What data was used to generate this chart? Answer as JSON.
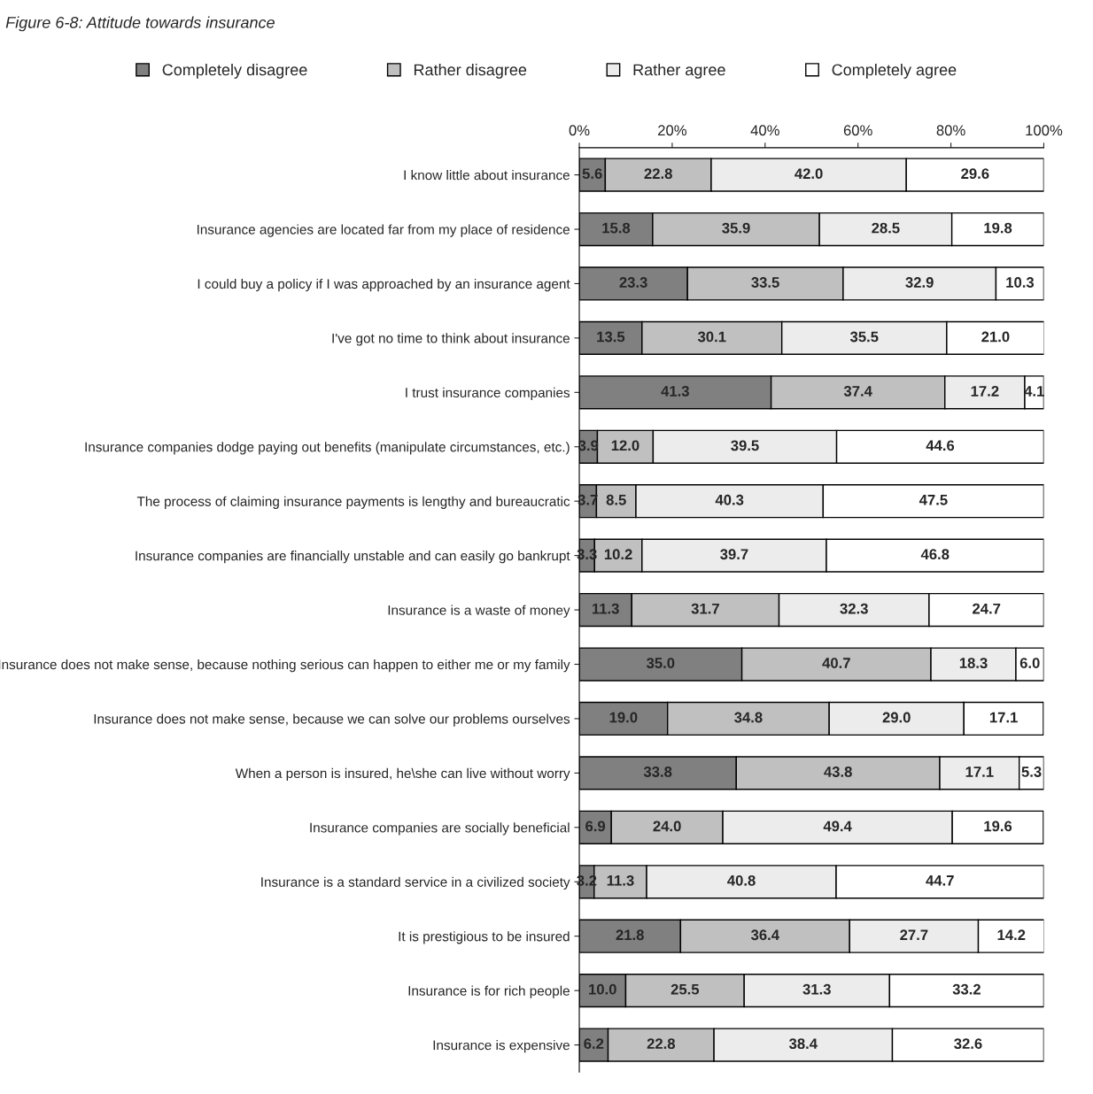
{
  "chart_data": {
    "type": "bar",
    "orientation": "horizontal",
    "stacked": true,
    "title": "Figure 6-8: Attitude towards insurance",
    "categories": [
      "I know little about insurance",
      "Insurance agencies are located far from my place of residence",
      "I could buy a policy if I was approached by an insurance agent",
      "I've got no time to think about insurance",
      "I trust insurance companies",
      "Insurance companies dodge paying out benefits (manipulate circumstances, etc.)",
      "The process of claiming insurance payments is lengthy and bureaucratic",
      "Insurance companies are financially unstable and can easily go bankrupt",
      "Insurance is a waste of money",
      "Insurance does not make sense, because nothing serious can happen to either me or my family",
      "Insurance does not make sense, because we can solve our problems ourselves",
      "When a person is insured, he\\she can live without worry",
      "Insurance companies are socially beneficial",
      "Insurance is a standard service in a civilized society",
      "It is prestigious to be insured",
      "Insurance is for rich people",
      "Insurance is expensive"
    ],
    "series": [
      {
        "name": "Completely disagree",
        "color": "#808080",
        "values": [
          5.6,
          15.8,
          23.3,
          13.5,
          41.3,
          3.9,
          3.7,
          3.3,
          11.3,
          35.0,
          19.0,
          33.8,
          6.9,
          3.2,
          21.8,
          10.0,
          6.2
        ],
        "value_labels": [
          "5.6",
          "15.8",
          "23.3",
          "13.5",
          "41.3",
          "3.9",
          "3.7",
          "3.3",
          "11.3",
          "35.0",
          "19.0",
          "33.8",
          "6.9",
          "3.2",
          "21.8",
          "10.0",
          "6.2"
        ]
      },
      {
        "name": "Rather disagree",
        "color": "#c0c0c0",
        "values": [
          22.8,
          35.9,
          33.5,
          30.1,
          37.4,
          12.0,
          8.5,
          10.2,
          31.7,
          40.7,
          34.8,
          43.8,
          24.0,
          11.3,
          36.4,
          25.5,
          22.8
        ],
        "value_labels": [
          "22.8",
          "35.9",
          "33.5",
          "30.1",
          "37.4",
          "12.0",
          "8.5",
          "10.2",
          "31.7",
          "40.7",
          "34.8",
          "43.8",
          "24.0",
          "11.3",
          "36.4",
          "25.5",
          "22.8"
        ]
      },
      {
        "name": "Rather agree",
        "color": "#ececec",
        "values": [
          42.0,
          28.5,
          32.9,
          35.5,
          17.2,
          39.5,
          40.3,
          39.7,
          32.3,
          18.3,
          29.0,
          17.1,
          49.4,
          40.8,
          27.7,
          31.3,
          38.4
        ],
        "value_labels": [
          "42.0",
          "28.5",
          "32.9",
          "35.5",
          "17.2",
          "39.5",
          "40.3",
          "39.7",
          "32.3",
          "18.3",
          "29.0",
          "17.1",
          "49.4",
          "40.8",
          "27.7",
          "31.3",
          "38.4"
        ]
      },
      {
        "name": "Completely agree",
        "color": "#ffffff",
        "values": [
          29.6,
          19.8,
          10.3,
          21.0,
          4.1,
          44.6,
          47.5,
          46.8,
          24.7,
          6.0,
          17.1,
          5.3,
          19.6,
          44.7,
          14.2,
          33.2,
          32.6
        ],
        "value_labels": [
          "29.6",
          "19.8",
          "10.3",
          "21.0",
          "4.1",
          "44.6",
          "47.5",
          "46.8",
          "24.7",
          "6.0",
          "17.1",
          "5.3",
          "19.6",
          "44.7",
          "14.2",
          "33.2",
          "32.6"
        ]
      }
    ],
    "xlim": [
      0,
      100
    ],
    "xticks": [
      {
        "value": 0,
        "label": "0%"
      },
      {
        "value": 20,
        "label": "20%"
      },
      {
        "value": 40,
        "label": "40%"
      },
      {
        "value": 60,
        "label": "60%"
      },
      {
        "value": 80,
        "label": "80%"
      },
      {
        "value": 100,
        "label": "100%"
      }
    ],
    "legend": "top",
    "grid": false
  }
}
